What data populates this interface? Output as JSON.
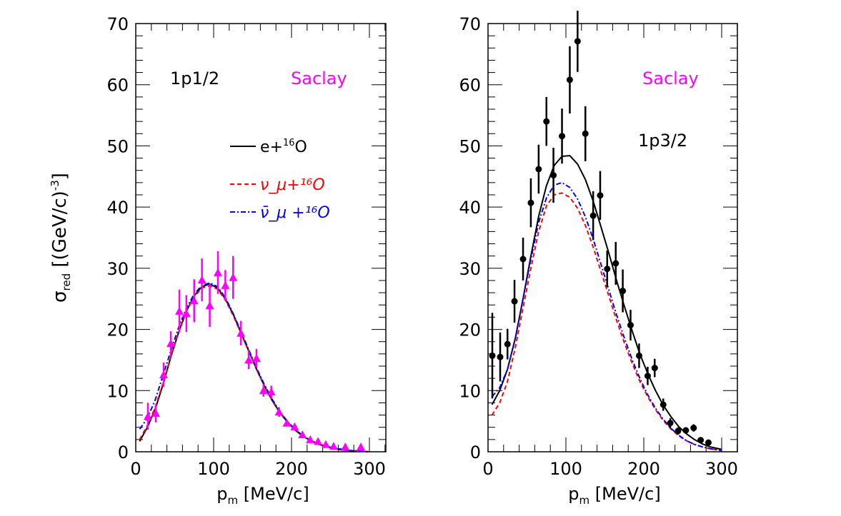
{
  "chart_data": [
    {
      "type": "line",
      "panel_label": "1p1/2",
      "source_label": "Saclay",
      "ylabel": "σ_red [(GeV/c)^-3]",
      "xlabel": "p_m [MeV/c]",
      "xlim": [
        0,
        320
      ],
      "ylim": [
        0,
        70
      ],
      "xticks": [
        0,
        100,
        200,
        300
      ],
      "yticks": [
        0,
        10,
        20,
        30,
        40,
        50,
        60,
        70
      ],
      "legend": [
        {
          "label": "e+¹⁶O",
          "color": "#000000",
          "style": "solid"
        },
        {
          "label": "ν_μ+¹⁶O",
          "color": "#ff0000",
          "style": "dashed"
        },
        {
          "label": "ν̄_μ +¹⁶O",
          "color": "#0000ff",
          "style": "dashdot"
        }
      ],
      "curve_x": [
        5,
        15,
        25,
        35,
        45,
        55,
        65,
        75,
        85,
        95,
        105,
        115,
        125,
        135,
        145,
        155,
        165,
        175,
        185,
        195,
        205,
        215,
        225,
        235,
        245,
        255,
        265,
        275,
        285,
        300
      ],
      "series": [
        {
          "name": "e+¹⁶O",
          "color": "#000000",
          "style": "solid",
          "values": [
            1.7,
            4,
            7,
            11,
            15.5,
            19.5,
            23,
            25.5,
            27,
            27.4,
            26.8,
            25,
            22.5,
            19.5,
            16.5,
            13.5,
            10.8,
            8.4,
            6.4,
            4.8,
            3.5,
            2.5,
            1.8,
            1.2,
            0.8,
            0.5,
            0.3,
            0.2,
            0.1,
            0
          ]
        },
        {
          "name": "ν_μ+¹⁶O",
          "color": "#ff0000",
          "style": "dashed",
          "values": [
            2.0,
            4.3,
            7.3,
            11.2,
            15.6,
            19.5,
            23,
            25.3,
            26.8,
            27.1,
            26.6,
            24.8,
            22.3,
            19.4,
            16.4,
            13.5,
            10.8,
            8.5,
            6.5,
            4.9,
            3.6,
            2.6,
            1.8,
            1.3,
            0.9,
            0.6,
            0.4,
            0.2,
            0.1,
            0
          ]
        },
        {
          "name": "ν̄_μ +¹⁶O",
          "color": "#0000ff",
          "style": "dashdot",
          "values": [
            3.7,
            5.5,
            8.5,
            12.5,
            16.5,
            20.3,
            23.5,
            25.8,
            27.2,
            27.6,
            27,
            25.2,
            22.6,
            19.7,
            16.7,
            13.7,
            11,
            8.6,
            6.6,
            4.9,
            3.6,
            2.6,
            1.8,
            1.3,
            0.9,
            0.6,
            0.4,
            0.2,
            0.1,
            0
          ]
        }
      ],
      "data_points": {
        "name": "Saclay",
        "marker": "triangle",
        "color": "#ff00ff",
        "x": [
          15.6,
          25.7,
          35.8,
          45,
          56,
          65,
          75,
          85,
          95,
          105.5,
          115,
          125,
          135,
          145,
          155,
          164,
          174,
          184,
          194,
          204,
          214,
          224,
          234,
          244,
          254,
          269,
          289
        ],
        "y": [
          5.8,
          6.3,
          12.6,
          17.7,
          23,
          22.6,
          24.7,
          28.1,
          23.9,
          29.3,
          27.2,
          28.5,
          19.4,
          15,
          15.3,
          10,
          9.8,
          6.5,
          4.7,
          4.1,
          2.8,
          2.0,
          1.7,
          1.2,
          0.9,
          0.8,
          0.8
        ],
        "err": [
          2.2,
          1.5,
          2,
          2,
          3.5,
          3,
          3.5,
          3.5,
          3.5,
          3.5,
          2.5,
          3.5,
          2,
          1.5,
          1.5,
          1,
          1,
          0.8,
          0.5,
          0.5,
          0.3,
          0.3,
          0.2,
          0.2,
          0.2,
          0.2,
          0.2
        ]
      }
    },
    {
      "type": "line",
      "panel_label": "1p3/2",
      "source_label": "Saclay",
      "xlabel": "p_m [MeV/c]",
      "xlim": [
        0,
        320
      ],
      "ylim": [
        0,
        70
      ],
      "xticks": [
        0,
        100,
        200,
        300
      ],
      "yticks": [
        0,
        10,
        20,
        30,
        40,
        50,
        60,
        70
      ],
      "curve_x": [
        5,
        15,
        25,
        35,
        45,
        55,
        65,
        75,
        85,
        95,
        105,
        115,
        125,
        135,
        145,
        155,
        165,
        175,
        185,
        195,
        205,
        215,
        225,
        235,
        245,
        255,
        265,
        275,
        285,
        300
      ],
      "series": [
        {
          "color": "#000000",
          "style": "solid",
          "values": [
            7.7,
            10,
            13.5,
            18.5,
            25,
            32,
            38.5,
            43.5,
            46.8,
            48.3,
            48.4,
            47,
            44.5,
            41,
            36.8,
            32.5,
            28,
            23.8,
            19.8,
            16,
            12.8,
            10,
            7.6,
            5.7,
            4.1,
            2.9,
            2,
            1.3,
            0.8,
            0.4
          ]
        },
        {
          "color": "#ff0000",
          "style": "dashed",
          "values": [
            6,
            8,
            11.5,
            17,
            23.5,
            30,
            36,
            40.2,
            42,
            42.3,
            41.6,
            39.8,
            37,
            33.5,
            29.5,
            25.5,
            21.5,
            17.8,
            14.5,
            11.5,
            9,
            6.9,
            5.1,
            3.7,
            2.6,
            1.8,
            1.2,
            0.8,
            0.5,
            0.2
          ]
        },
        {
          "color": "#0000ff",
          "style": "dashdot",
          "values": [
            9,
            10.5,
            13.5,
            18.5,
            25,
            31.5,
            37.5,
            41.5,
            43.6,
            44,
            43.2,
            41.3,
            38.4,
            34.8,
            30.7,
            26.5,
            22.4,
            18.6,
            15.1,
            12,
            9.3,
            7.1,
            5.3,
            3.8,
            2.7,
            1.8,
            1.2,
            0.8,
            0.5,
            0.2
          ]
        }
      ],
      "data_points": {
        "name": "Saclay",
        "marker": "circle",
        "color": "#000000",
        "x": [
          5.5,
          15.6,
          25,
          34,
          45,
          55,
          65,
          75,
          84,
          95,
          105,
          115,
          125,
          135,
          144,
          153,
          164,
          173,
          183,
          194,
          205,
          214,
          225,
          234,
          244,
          254,
          264,
          273,
          283
        ],
        "y": [
          15.7,
          15.5,
          17.6,
          24.6,
          31.5,
          40.7,
          46.2,
          54.0,
          45.2,
          51.6,
          60.8,
          67.1,
          52.0,
          38.6,
          41.9,
          29.9,
          30.8,
          26.3,
          20.7,
          15.7,
          12.4,
          13.7,
          7.7,
          4.7,
          3.4,
          3.5,
          3.9,
          1.9,
          1.5
        ],
        "err": [
          7,
          4,
          2.5,
          3.5,
          3.5,
          4,
          4,
          4,
          4.5,
          4.5,
          5.5,
          5,
          4.5,
          4,
          4,
          3,
          3.5,
          3.5,
          2.5,
          2,
          1.5,
          1.5,
          1,
          0.8,
          0.6,
          0.5,
          0.6,
          0.5,
          0.5
        ]
      }
    }
  ]
}
